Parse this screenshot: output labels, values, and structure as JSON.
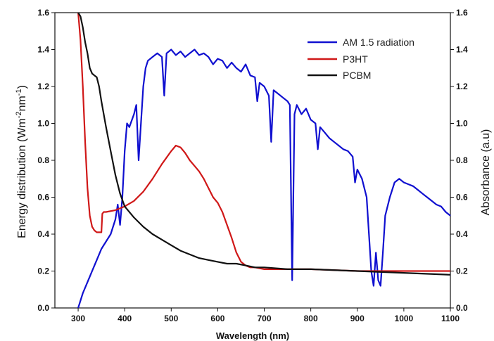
{
  "chart_data": {
    "type": "line",
    "title": "",
    "xlabel": "Wavelength (nm)",
    "ylabel_left": {
      "text": "Energy distribution (Wm",
      "sup1": "-2",
      "mid": "nm",
      "sup2": "-1",
      "end": ")"
    },
    "ylabel_right": "Absorbance (a.u)",
    "xlim": [
      250,
      1100
    ],
    "ylim": [
      0,
      1.6
    ],
    "y2lim": [
      0,
      1.6
    ],
    "x_ticks": [
      "300",
      "400",
      "500",
      "600",
      "700",
      "800",
      "900",
      "1000",
      "1100"
    ],
    "x_tick_values": [
      300,
      400,
      500,
      600,
      700,
      800,
      900,
      1000,
      1100
    ],
    "y_ticks": [
      "0.0",
      "0.2",
      "0.4",
      "0.6",
      "0.8",
      "1.0",
      "1.2",
      "1.4",
      "1.6"
    ],
    "y_tick_values": [
      0,
      0.2,
      0.4,
      0.6,
      0.8,
      1.0,
      1.2,
      1.4,
      1.6
    ],
    "grid": false,
    "legend_position": "top-right",
    "series": [
      {
        "name": "AM 1.5 radiation",
        "color": "#1010d0",
        "axis": "left",
        "x": [
          300,
          310,
          320,
          330,
          340,
          350,
          360,
          370,
          380,
          385,
          390,
          395,
          400,
          405,
          410,
          420,
          425,
          430,
          440,
          445,
          450,
          460,
          470,
          480,
          485,
          490,
          500,
          510,
          520,
          530,
          540,
          550,
          560,
          570,
          580,
          590,
          600,
          610,
          620,
          630,
          640,
          650,
          660,
          670,
          680,
          685,
          690,
          700,
          710,
          715,
          720,
          730,
          740,
          750,
          755,
          760,
          765,
          770,
          780,
          790,
          800,
          810,
          815,
          820,
          830,
          840,
          850,
          860,
          870,
          880,
          890,
          895,
          900,
          910,
          920,
          925,
          930,
          935,
          940,
          945,
          950,
          955,
          960,
          970,
          980,
          990,
          1000,
          1010,
          1020,
          1030,
          1040,
          1050,
          1060,
          1070,
          1080,
          1090,
          1100
        ],
        "y": [
          0.0,
          0.08,
          0.14,
          0.2,
          0.26,
          0.32,
          0.36,
          0.4,
          0.48,
          0.56,
          0.45,
          0.6,
          0.85,
          1.0,
          0.98,
          1.05,
          1.1,
          0.8,
          1.2,
          1.3,
          1.34,
          1.36,
          1.38,
          1.36,
          1.15,
          1.38,
          1.4,
          1.37,
          1.39,
          1.36,
          1.38,
          1.4,
          1.37,
          1.38,
          1.36,
          1.32,
          1.35,
          1.34,
          1.3,
          1.33,
          1.3,
          1.28,
          1.32,
          1.26,
          1.25,
          1.12,
          1.22,
          1.2,
          1.15,
          0.9,
          1.18,
          1.16,
          1.14,
          1.12,
          1.1,
          0.15,
          1.05,
          1.1,
          1.05,
          1.08,
          1.02,
          1.0,
          0.86,
          0.98,
          0.95,
          0.92,
          0.9,
          0.88,
          0.86,
          0.85,
          0.82,
          0.68,
          0.75,
          0.7,
          0.6,
          0.4,
          0.2,
          0.12,
          0.3,
          0.15,
          0.12,
          0.3,
          0.5,
          0.6,
          0.68,
          0.7,
          0.68,
          0.67,
          0.66,
          0.64,
          0.62,
          0.6,
          0.58,
          0.56,
          0.55,
          0.52,
          0.5
        ]
      },
      {
        "name": "P3HT",
        "color": "#d01818",
        "axis": "right",
        "x": [
          300,
          305,
          310,
          315,
          320,
          325,
          330,
          335,
          340,
          345,
          350,
          352,
          355,
          360,
          380,
          400,
          420,
          440,
          460,
          480,
          500,
          510,
          520,
          530,
          540,
          550,
          560,
          570,
          580,
          590,
          600,
          610,
          620,
          630,
          640,
          650,
          660,
          670,
          680,
          700,
          750,
          800,
          900,
          1000,
          1100
        ],
        "y": [
          1.6,
          1.45,
          1.2,
          0.9,
          0.65,
          0.5,
          0.44,
          0.42,
          0.41,
          0.41,
          0.41,
          0.51,
          0.52,
          0.52,
          0.53,
          0.55,
          0.58,
          0.63,
          0.7,
          0.78,
          0.85,
          0.88,
          0.87,
          0.84,
          0.8,
          0.77,
          0.74,
          0.7,
          0.65,
          0.6,
          0.57,
          0.52,
          0.45,
          0.38,
          0.3,
          0.25,
          0.23,
          0.22,
          0.22,
          0.21,
          0.21,
          0.21,
          0.2,
          0.2,
          0.2
        ]
      },
      {
        "name": "PCBM",
        "color": "#111111",
        "axis": "right",
        "x": [
          300,
          305,
          310,
          315,
          320,
          325,
          330,
          335,
          340,
          345,
          350,
          360,
          370,
          380,
          390,
          400,
          420,
          440,
          460,
          480,
          500,
          520,
          540,
          560,
          580,
          600,
          620,
          640,
          660,
          680,
          700,
          750,
          800,
          900,
          1000,
          1100
        ],
        "y": [
          1.6,
          1.58,
          1.52,
          1.44,
          1.38,
          1.3,
          1.27,
          1.26,
          1.25,
          1.2,
          1.12,
          0.98,
          0.85,
          0.72,
          0.62,
          0.55,
          0.49,
          0.44,
          0.4,
          0.37,
          0.34,
          0.31,
          0.29,
          0.27,
          0.26,
          0.25,
          0.24,
          0.24,
          0.23,
          0.22,
          0.22,
          0.21,
          0.21,
          0.2,
          0.19,
          0.18
        ]
      }
    ]
  }
}
